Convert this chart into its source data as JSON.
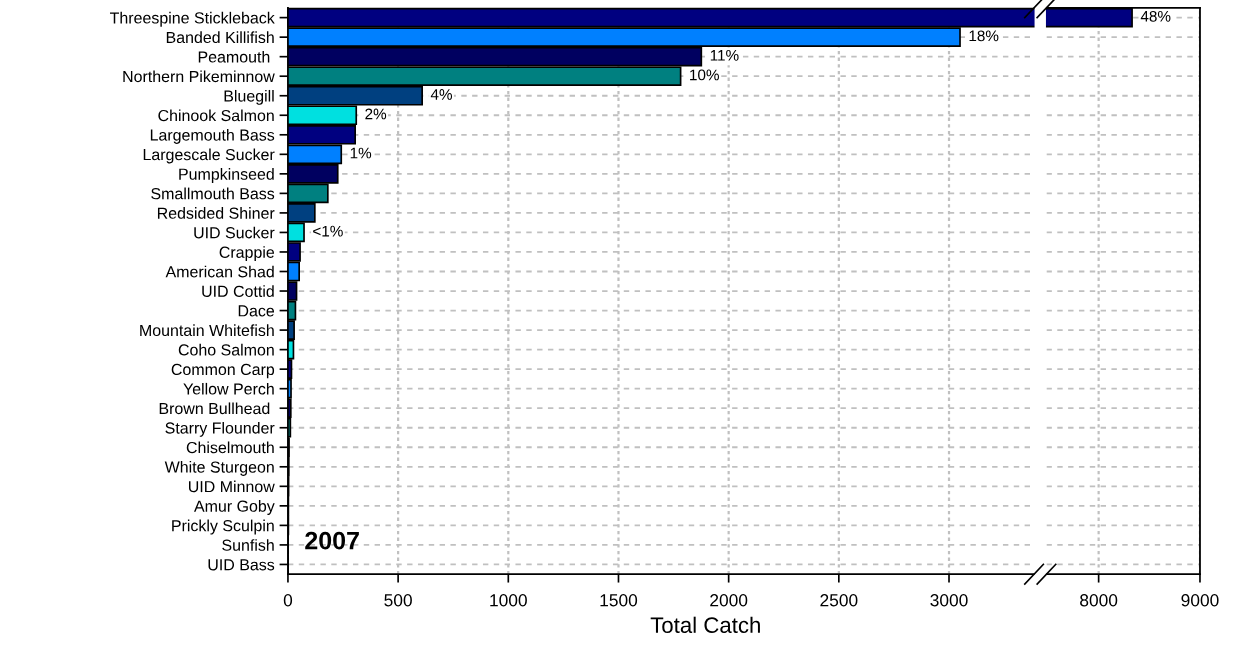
{
  "chart_data": [
    {
      "type": "bar",
      "orientation": "horizontal",
      "xlabel": "Total Catch",
      "annotations": [
        "2007",
        {
          "text": "18%",
          "x": 3050,
          "y": "Banded Killifish"
        },
        {
          "text": "11%",
          "x": 1876,
          "y": "Peamouth "
        },
        {
          "text": "10%",
          "x": 1782,
          "y": "Northern Pikeminnow"
        },
        {
          "text": "4%",
          "x": 609,
          "y": "Bluegill"
        },
        {
          "text": "2%",
          "x": 310,
          "y": "Chinook Salmon"
        },
        {
          "text": "1%",
          "x": 242,
          "y": "Largescale Sucker"
        },
        {
          "text": "<1%",
          "x": 73,
          "y": "UID Sucker"
        }
      ],
      "categories": [
        "Threespine Stickleback",
        "Banded Killifish",
        "Peamouth ",
        "Northern Pikeminnow",
        "Bluegill",
        "Chinook Salmon",
        "Largemouth Bass",
        "Largescale Sucker",
        "Pumpkinseed",
        "Smallmouth Bass",
        "Redsided Shiner",
        "UID Sucker",
        "Crappie",
        "American Shad",
        "UID Cottid",
        "Dace",
        "Mountain Whitefish",
        "Coho Salmon",
        "Common Carp",
        "Yellow Perch",
        "Brown Bullhead ",
        "Starry Flounder",
        "Chiselmouth",
        "White Sturgeon",
        "UID Minnow",
        "Amur Goby",
        "Prickly Sculpin",
        "Sunfish",
        "UID Bass"
      ],
      "values": [
        null,
        3050,
        1876,
        1782,
        609,
        310,
        305,
        242,
        226,
        181,
        122,
        73,
        55,
        51,
        39,
        34,
        28,
        25,
        16,
        14,
        13,
        11,
        5,
        4,
        3,
        2,
        2,
        1,
        1
      ],
      "colors": [
        "#000080",
        "#0080ff",
        "#000060",
        "#008080",
        "#004080",
        "#00e0e0",
        "#000080",
        "#0080ff",
        "#000060",
        "#008080",
        "#004080",
        "#00e0e0",
        "#000080",
        "#0080ff",
        "#000060",
        "#008080",
        "#004080",
        "#00e0e0",
        "#000080",
        "#0080ff",
        "#000060",
        "#008080",
        "#004080",
        "#00e0e0",
        "#000080",
        "#0080ff",
        "#000060",
        "#008080",
        "#004080"
      ],
      "xlim": [
        0,
        3386
      ],
      "xticks": [
        0,
        500,
        1000,
        1500,
        2000,
        2500,
        3000
      ],
      "grid": true
    },
    {
      "type": "bar",
      "orientation": "horizontal",
      "tick_labels": "x",
      "annotations": [
        {
          "text": "48%",
          "x": 8330,
          "y": "Threespine Stickleback"
        }
      ],
      "categories": [
        "Threespine Stickleback",
        "Banded Killifish",
        "Peamouth ",
        "Northern Pikeminnow",
        "Bluegill",
        "Chinook Salmon",
        "Largemouth Bass",
        "Largescale Sucker",
        "Pumpkinseed",
        "Smallmouth Bass",
        "Redsided Shiner",
        "UID Sucker",
        "Crappie",
        "American Shad",
        "UID Cottid",
        "Dace",
        "Mountain Whitefish",
        "Coho Salmon",
        "Common Carp",
        "Yellow Perch",
        "Brown Bullhead ",
        "Starry Flounder",
        "Chiselmouth",
        "White Sturgeon",
        "UID Minnow",
        "Amur Goby",
        "Prickly Sculpin",
        "Sunfish",
        "UID Bass"
      ],
      "values": [
        8330,
        null,
        null,
        null,
        null,
        null,
        null,
        null,
        null,
        null,
        null,
        null,
        null,
        null,
        null,
        null,
        null,
        null,
        null,
        null,
        null,
        null,
        null,
        null,
        null,
        null,
        null,
        null,
        null
      ],
      "colors": [
        "#000080",
        "#0080ff",
        "#000060",
        "#008080",
        "#004080",
        "#00e0e0",
        "#000080",
        "#0080ff",
        "#000060",
        "#008080",
        "#004080",
        "#00e0e0",
        "#000080",
        "#0080ff",
        "#000060",
        "#008080",
        "#004080",
        "#00e0e0",
        "#000080",
        "#0080ff",
        "#000060",
        "#008080",
        "#004080",
        "#00e0e0",
        "#000080",
        "#0080ff",
        "#000060",
        "#008080",
        "#004080"
      ],
      "xlim": [
        7485,
        9000
      ],
      "xticks": [
        8000,
        9000
      ],
      "grid": true
    }
  ]
}
